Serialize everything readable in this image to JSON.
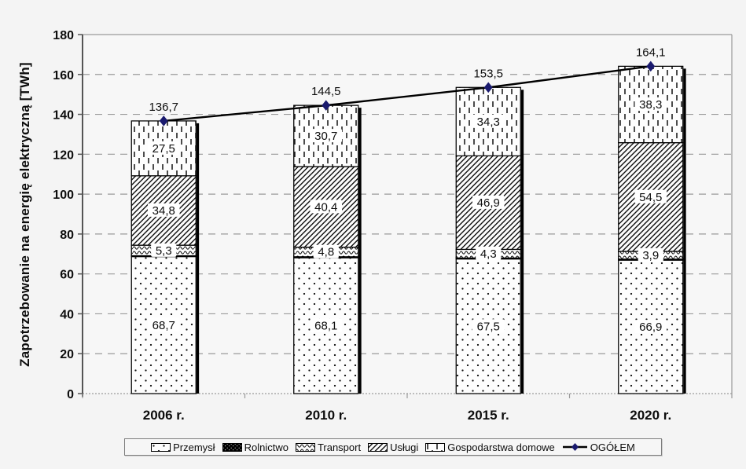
{
  "chart_data": {
    "type": "stacked-bar-line",
    "ylabel": "Zapotrzebowanie na energię elektryczną [TWh]",
    "unit": "TWh",
    "categories": [
      "2006 r.",
      "2010 r.",
      "2015 r.",
      "2020 r."
    ],
    "ylim": [
      0,
      180
    ],
    "ytick_step": 20,
    "yticks": [
      0,
      20,
      40,
      60,
      80,
      100,
      120,
      140,
      160,
      180
    ],
    "grid": "dashed horizontal",
    "legend_position": "bottom",
    "series": [
      {
        "name": "Przemysł",
        "pattern": "dots",
        "values": [
          68.7,
          68.1,
          67.5,
          66.9
        ],
        "labels": [
          "68,7",
          "68,1",
          "67,5",
          "66,9"
        ]
      },
      {
        "name": "Rolnictwo",
        "pattern": "solid-dark",
        "values": [
          0.4,
          0.5,
          0.5,
          0.5
        ],
        "labels": [
          "",
          "",
          "",
          ""
        ]
      },
      {
        "name": "Transport",
        "pattern": "waves",
        "values": [
          5.3,
          4.8,
          4.3,
          3.9
        ],
        "labels": [
          "5,3",
          "4,8",
          "4,3",
          "3,9"
        ]
      },
      {
        "name": "Usługi",
        "pattern": "diagonal",
        "values": [
          34.8,
          40.4,
          46.9,
          54.5
        ],
        "labels": [
          "34,8",
          "40,4",
          "46,9",
          "54,5"
        ]
      },
      {
        "name": "Gospodarstwa domowe",
        "pattern": "vdash",
        "values": [
          27.5,
          30.7,
          34.3,
          38.3
        ],
        "labels": [
          "27,5",
          "30,7",
          "34,3",
          "38,3"
        ]
      }
    ],
    "line_series": {
      "name": "OGÓŁEM",
      "values": [
        136.7,
        144.5,
        153.5,
        164.1
      ],
      "labels": [
        "136,7",
        "144,5",
        "153,5",
        "164,1"
      ]
    },
    "colors": {
      "page_background": "#f4f4f4",
      "plot_background": "#f7f7f7",
      "bar_fill": "#fdfdfd",
      "bar_border": "#000000",
      "grid": "#9a9a9a",
      "axis": "#555555",
      "frame": "#9a9a9a",
      "line": "#000000",
      "marker": "#1a1a6e",
      "label_background": "#ffffff",
      "text": "#0d0d0d"
    }
  }
}
